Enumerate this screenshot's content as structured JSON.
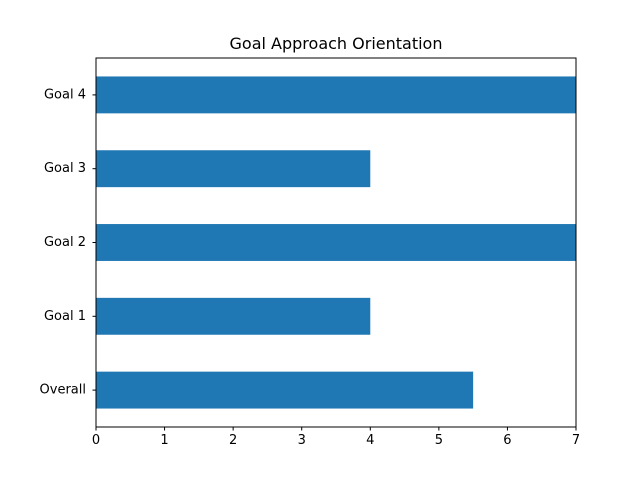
{
  "chart_data": {
    "type": "bar",
    "orientation": "horizontal",
    "title": "Goal Approach Orientation",
    "xlabel": "",
    "ylabel": "",
    "categories": [
      "Overall",
      "Goal 1",
      "Goal 2",
      "Goal 3",
      "Goal 4"
    ],
    "values": [
      5.5,
      4,
      7,
      4,
      7
    ],
    "xlim": [
      0,
      7
    ],
    "xticks": [
      0,
      1,
      2,
      3,
      4,
      5,
      6,
      7
    ],
    "grid": false,
    "legend": "none",
    "bar_color": "#1f77b4"
  }
}
